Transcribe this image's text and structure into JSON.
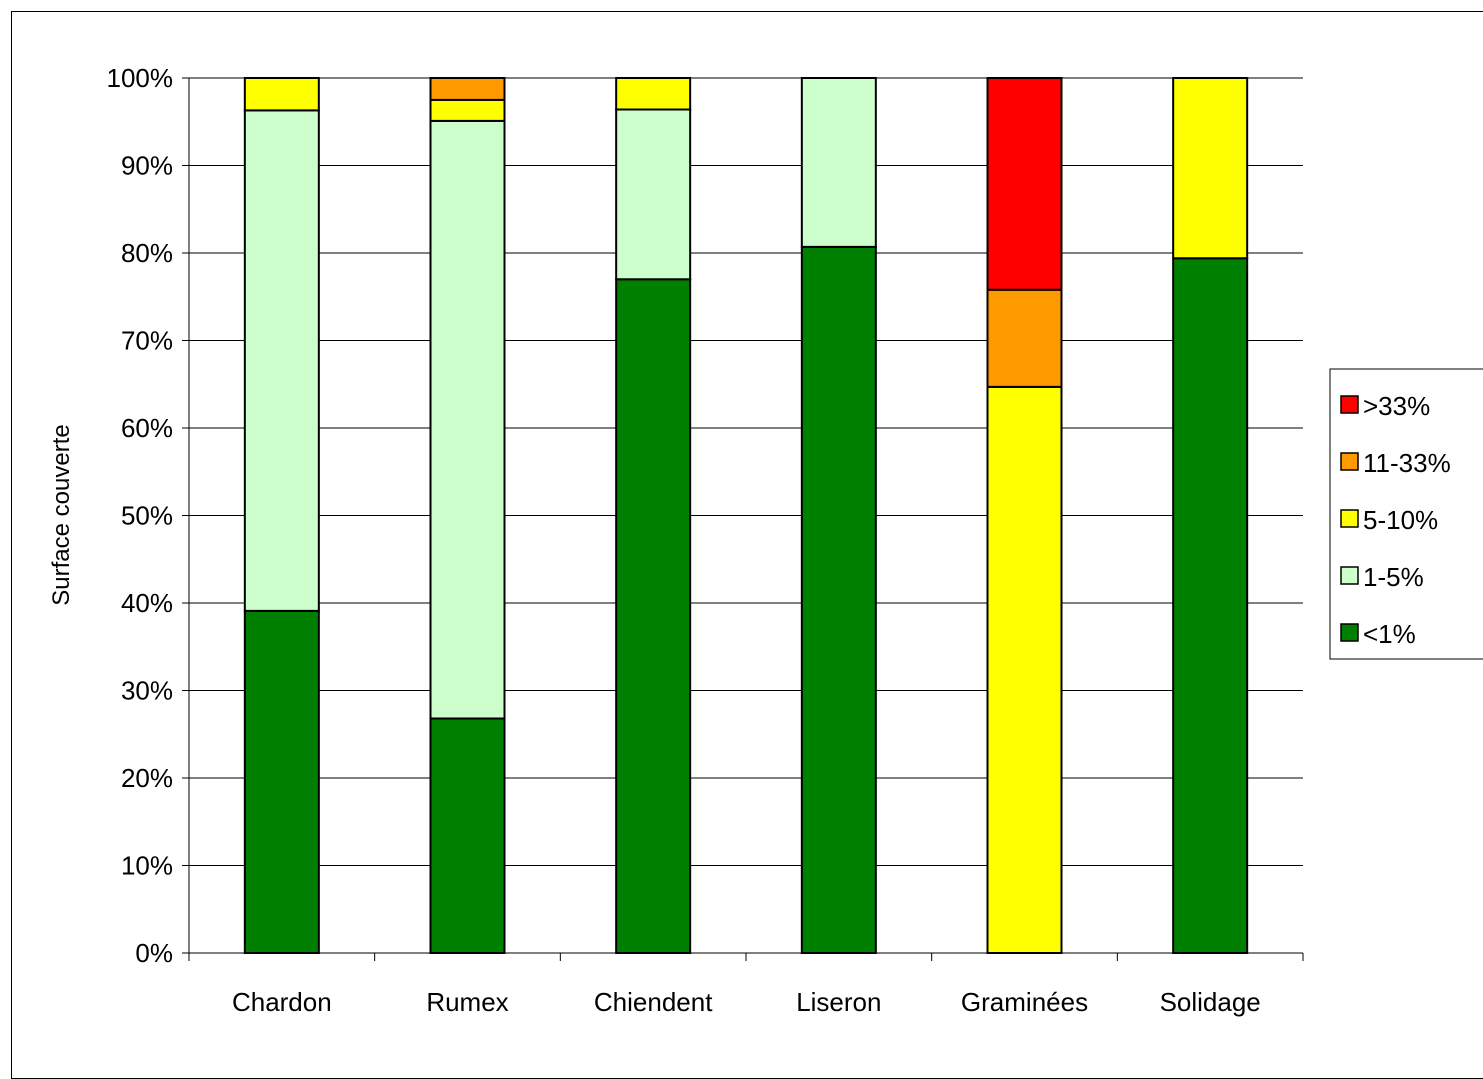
{
  "chart_data": {
    "type": "bar",
    "stacked": true,
    "percent": true,
    "title": "",
    "xlabel": "",
    "ylabel": "Surface couverte",
    "ylim": [
      0,
      100
    ],
    "yticks": [
      "0%",
      "10%",
      "20%",
      "30%",
      "40%",
      "50%",
      "60%",
      "70%",
      "80%",
      "90%",
      "100%"
    ],
    "grid": true,
    "legend_position": "right",
    "categories": [
      "Chardon",
      "Rumex",
      "Chiendent",
      "Liseron",
      "Graminées",
      "Solidage"
    ],
    "series": [
      {
        "name": "<1%",
        "color": "#008000",
        "values": [
          39.1,
          26.8,
          77.0,
          80.7,
          0,
          79.4
        ]
      },
      {
        "name": "1-5%",
        "color": "#CCFFCC",
        "values": [
          57.2,
          68.3,
          19.4,
          19.3,
          0,
          0
        ]
      },
      {
        "name": "5-10%",
        "color": "#FFFF00",
        "values": [
          3.7,
          2.4,
          3.6,
          0,
          64.7,
          20.6
        ]
      },
      {
        "name": "11-33%",
        "color": "#FF9900",
        "values": [
          0,
          2.5,
          0,
          0,
          11.1,
          0
        ]
      },
      {
        "name": ">33%",
        "color": "#FF0000",
        "values": [
          0,
          0,
          0,
          0,
          24.2,
          0
        ]
      }
    ],
    "legend_order": [
      ">33%",
      "11-33%",
      "5-10%",
      "1-5%",
      "<1%"
    ]
  }
}
